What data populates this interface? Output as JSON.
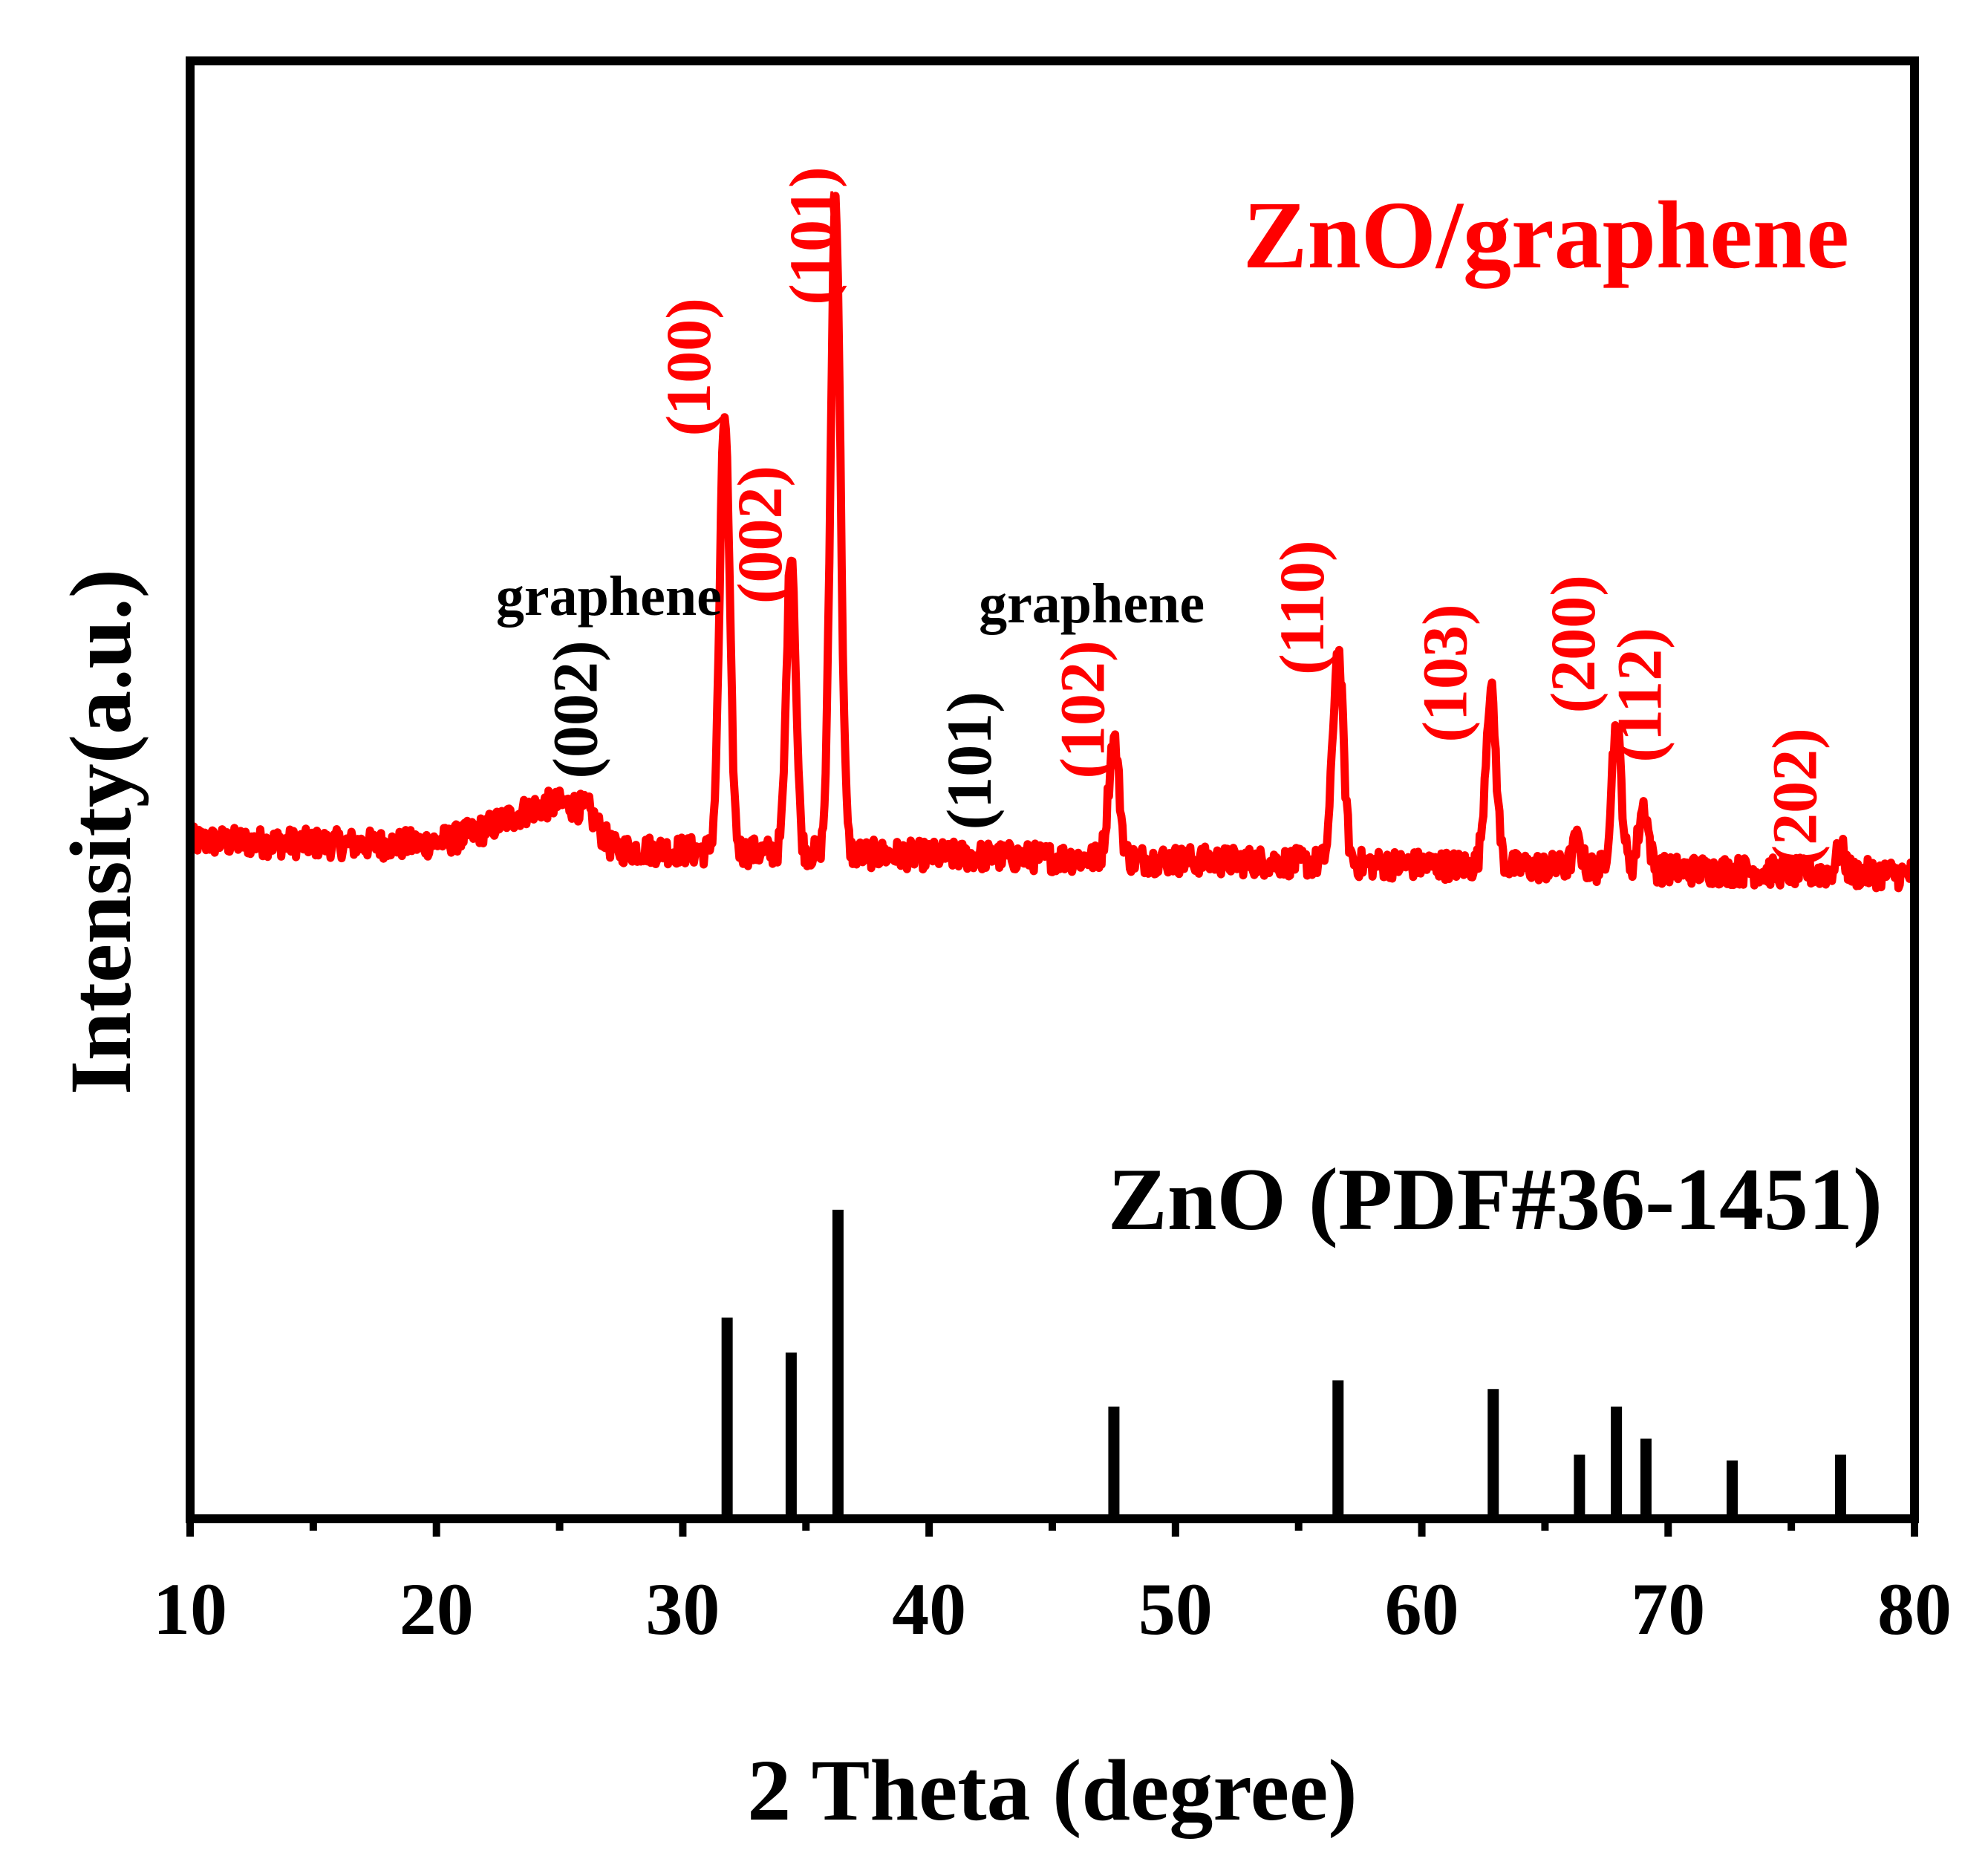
{
  "chart_data": {
    "type": "line",
    "xlabel": "2 Theta (degree)",
    "ylabel": "Intensity(a.u.)",
    "xlim": [
      10,
      80
    ],
    "ylim": [
      0,
      100
    ],
    "x_ticks": [
      10,
      20,
      30,
      40,
      50,
      60,
      70,
      80
    ],
    "x_tick_labels": [
      "10",
      "20",
      "30",
      "40",
      "50",
      "60",
      "70",
      "80"
    ],
    "x_minor_ticks": [
      15,
      25,
      35,
      45,
      55,
      65,
      75
    ],
    "grid": false,
    "series": [
      {
        "name": "ZnO/graphene",
        "kind": "line",
        "color": "#ff0000",
        "baseline_start": 46.5,
        "baseline_end": 44.2,
        "broad_hump": {
          "center": 25.0,
          "width": 3.2,
          "height": 3.0
        },
        "peaks": [
          {
            "x": 31.7,
            "height": 30.0,
            "width": 0.28
          },
          {
            "x": 34.4,
            "height": 21.0,
            "width": 0.26
          },
          {
            "x": 36.2,
            "height": 45.0,
            "width": 0.28
          },
          {
            "x": 47.5,
            "height": 8.2,
            "width": 0.3
          },
          {
            "x": 56.6,
            "height": 14.5,
            "width": 0.3
          },
          {
            "x": 62.8,
            "height": 12.0,
            "width": 0.3
          },
          {
            "x": 66.3,
            "height": 1.8,
            "width": 0.25
          },
          {
            "x": 67.9,
            "height": 9.8,
            "width": 0.28
          },
          {
            "x": 69.0,
            "height": 4.3,
            "width": 0.28
          },
          {
            "x": 77.0,
            "height": 1.6,
            "width": 0.25
          }
        ],
        "noise": 1.0
      },
      {
        "name": "ZnO (PDF#36-1451)",
        "kind": "stick",
        "color": "#000000",
        "x": [
          31.8,
          34.4,
          36.3,
          47.5,
          56.6,
          62.9,
          66.4,
          67.9,
          69.1,
          72.6,
          77.0
        ],
        "y": [
          13.8,
          11.4,
          21.2,
          7.7,
          9.5,
          8.9,
          4.4,
          7.7,
          5.5,
          4.0,
          4.4
        ]
      }
    ],
    "series_labels": [
      {
        "text": "ZnO/graphene",
        "color": "#ff0000"
      },
      {
        "text": "ZnO (PDF#36-1451)",
        "color": "#000000"
      }
    ],
    "annotations": [
      {
        "text": "graphene",
        "x": 27.0,
        "y": 62.0,
        "color": "#000000",
        "rotated": false
      },
      {
        "text": "(002)",
        "x": 26.5,
        "y": 55.5,
        "color": "#000000",
        "rotated": true
      },
      {
        "text": "graphene",
        "x": 46.6,
        "y": 61.5,
        "color": "#000000",
        "rotated": false
      },
      {
        "text": "(101)",
        "x": 42.5,
        "y": 52.0,
        "color": "#000000",
        "rotated": true
      },
      {
        "text": "(100)",
        "x": 31.1,
        "y": 79.0,
        "color": "#ff0000",
        "rotated": true
      },
      {
        "text": "(002)",
        "x": 34.0,
        "y": 67.5,
        "color": "#ff0000",
        "rotated": true
      },
      {
        "text": "(101)",
        "x": 36.1,
        "y": 88.0,
        "color": "#ff0000",
        "rotated": true
      },
      {
        "text": "(102)",
        "x": 47.1,
        "y": 55.5,
        "color": "#ff0000",
        "rotated": true
      },
      {
        "text": "(110)",
        "x": 56.0,
        "y": 62.5,
        "color": "#ff0000",
        "rotated": true
      },
      {
        "text": "(103)",
        "x": 61.8,
        "y": 58.0,
        "color": "#ff0000",
        "rotated": true
      },
      {
        "text": "(200)",
        "x": 67.0,
        "y": 60.0,
        "color": "#ff0000",
        "rotated": true
      },
      {
        "text": "(112)",
        "x": 69.7,
        "y": 56.5,
        "color": "#ff0000",
        "rotated": true
      },
      {
        "text": "(202)",
        "x": 76.0,
        "y": 49.5,
        "color": "#ff0000",
        "rotated": true
      }
    ]
  }
}
